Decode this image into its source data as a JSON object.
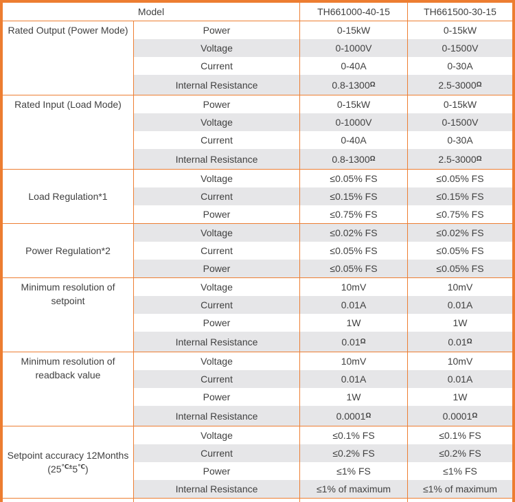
{
  "colors": {
    "border": "#ed7d31",
    "header_bg": "#fce4d6",
    "stripe_bg": "#e6e6e8",
    "text": "#404040"
  },
  "header": {
    "model_label": "Model",
    "models": [
      "TH661000-40-15",
      "TH661500-30-15"
    ]
  },
  "sections": [
    {
      "label": "Rated Output (Power Mode)",
      "align": "top",
      "rows": [
        {
          "param": "Power",
          "values": [
            "0-15kW",
            "0-15kW"
          ]
        },
        {
          "param": "Voltage",
          "values": [
            "0-1000V",
            "0-1500V"
          ]
        },
        {
          "param": "Current",
          "values": [
            "0-40A",
            "0-30A"
          ]
        },
        {
          "param": "Internal Resistance",
          "values": [
            "0.8-1300",
            "2.5-3000"
          ],
          "value_sup": "Ω"
        }
      ]
    },
    {
      "label": "Rated Input (Load Mode)",
      "align": "top",
      "rows": [
        {
          "param": "Power",
          "values": [
            "0-15kW",
            "0-15kW"
          ]
        },
        {
          "param": "Voltage",
          "values": [
            "0-1000V",
            "0-1500V"
          ]
        },
        {
          "param": "Current",
          "values": [
            "0-40A",
            "0-30A"
          ]
        },
        {
          "param": "Internal Resistance",
          "values": [
            "0.8-1300",
            "2.5-3000"
          ],
          "value_sup": "Ω"
        }
      ]
    },
    {
      "label": "Load Regulation*1",
      "align": "middle",
      "rows": [
        {
          "param": "Voltage",
          "values": [
            "≤0.05% FS",
            "≤0.05% FS"
          ]
        },
        {
          "param": "Current",
          "values": [
            "≤0.15% FS",
            "≤0.15% FS"
          ]
        },
        {
          "param": "Power",
          "values": [
            "≤0.75% FS",
            "≤0.75% FS"
          ]
        }
      ]
    },
    {
      "label": "Power Regulation*2",
      "align": "middle",
      "rows": [
        {
          "param": "Voltage",
          "values": [
            "≤0.02% FS",
            "≤0.02% FS"
          ]
        },
        {
          "param": "Current",
          "values": [
            "≤0.05% FS",
            "≤0.05% FS"
          ]
        },
        {
          "param": "Power",
          "values": [
            "≤0.05% FS",
            "≤0.05% FS"
          ]
        }
      ]
    },
    {
      "label": "Minimum resolution of setpoint",
      "align": "top",
      "rows": [
        {
          "param": "Voltage",
          "values": [
            "10mV",
            "10mV"
          ]
        },
        {
          "param": "Current",
          "values": [
            "0.01A",
            "0.01A"
          ]
        },
        {
          "param": "Power",
          "values": [
            "1W",
            "1W"
          ]
        },
        {
          "param": "Internal Resistance",
          "values": [
            "0.01",
            "0.01"
          ],
          "value_sup": "Ω"
        }
      ]
    },
    {
      "label": "Minimum resolution of readback value",
      "align": "top",
      "rows": [
        {
          "param": "Voltage",
          "values": [
            "10mV",
            "10mV"
          ]
        },
        {
          "param": "Current",
          "values": [
            "0.01A",
            "0.01A"
          ]
        },
        {
          "param": "Power",
          "values": [
            "1W",
            "1W"
          ]
        },
        {
          "param": "Internal Resistance",
          "values": [
            "0.0001",
            "0.0001"
          ],
          "value_sup": "Ω"
        }
      ]
    },
    {
      "label": "Setpoint accuracy 12Months",
      "label_line2_parts": [
        {
          "t": "(25"
        },
        {
          "t": "℃±",
          "sup": true
        },
        {
          "t": "5"
        },
        {
          "t": "℃",
          "sup": true
        },
        {
          "t": ")"
        }
      ],
      "align": "middle",
      "rows": [
        {
          "param": "Voltage",
          "values": [
            "≤0.1% FS",
            "≤0.1% FS"
          ]
        },
        {
          "param": "Current",
          "values": [
            "≤0.2% FS",
            "≤0.2% FS"
          ]
        },
        {
          "param": "Power",
          "values": [
            "≤1% FS",
            "≤1% FS"
          ]
        },
        {
          "param": "Internal Resistance",
          "values": [
            "≤1% of maximum",
            "≤1% of maximum"
          ]
        }
      ]
    }
  ]
}
